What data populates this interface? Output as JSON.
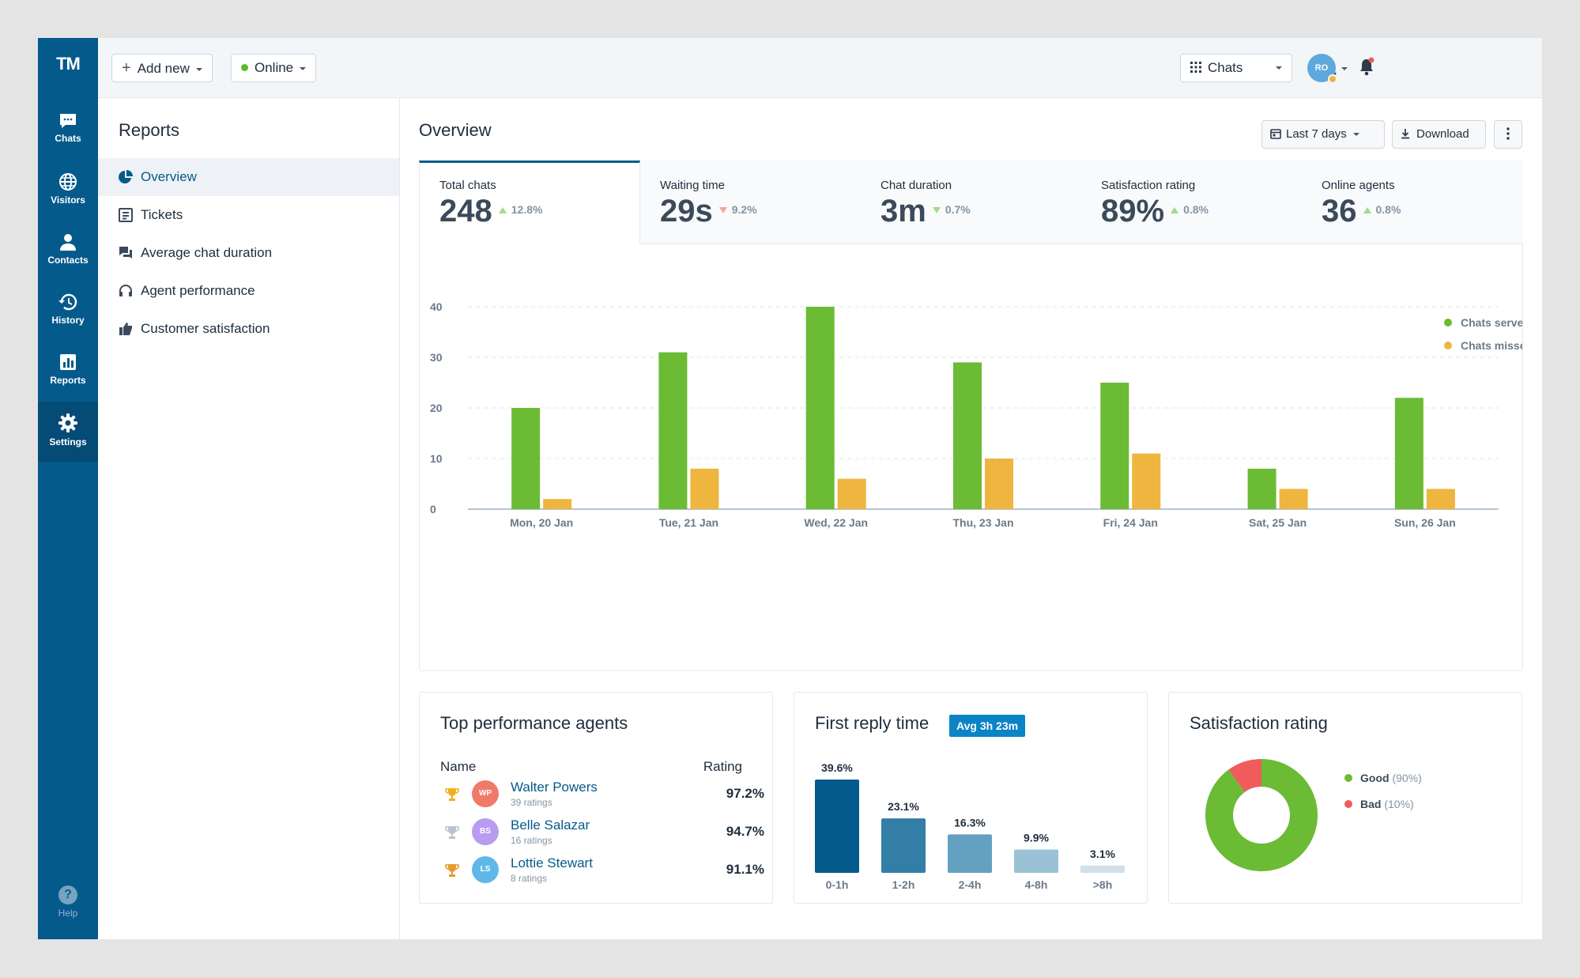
{
  "app": {
    "logo": "TM"
  },
  "nav": {
    "items": [
      {
        "label": "Chats",
        "icon": "chat-bubble-icon"
      },
      {
        "label": "Visitors",
        "icon": "globe-icon"
      },
      {
        "label": "Contacts",
        "icon": "person-icon"
      },
      {
        "label": "History",
        "icon": "history-icon"
      },
      {
        "label": "Reports",
        "icon": "bar-chart-icon"
      },
      {
        "label": "Settings",
        "icon": "gear-icon",
        "active": true
      }
    ],
    "help": "Help"
  },
  "topbar": {
    "add_new": "Add new",
    "status": "Online",
    "app_switcher": "Chats",
    "user_initials": "RO"
  },
  "sidebar": {
    "title": "Reports",
    "items": [
      {
        "label": "Overview",
        "active": true
      },
      {
        "label": "Tickets"
      },
      {
        "label": "Average chat duration"
      },
      {
        "label": "Agent performance"
      },
      {
        "label": "Customer satisfaction"
      }
    ]
  },
  "main": {
    "title": "Overview",
    "range": "Last 7 days",
    "download": "Download"
  },
  "kpis": [
    {
      "label": "Total chats",
      "value": "248",
      "change": "12.8%",
      "trend": "up"
    },
    {
      "label": "Waiting time",
      "value": "29s",
      "change": "9.2%",
      "trend": "down-bad"
    },
    {
      "label": "Chat duration",
      "value": "3m",
      "change": "0.7%",
      "trend": "down-good"
    },
    {
      "label": "Satisfaction rating",
      "value": "89%",
      "change": "0.8%",
      "trend": "up"
    },
    {
      "label": "Online agents",
      "value": "36",
      "change": "0.8%",
      "trend": "up"
    }
  ],
  "chart_data": {
    "type": "bar",
    "categories": [
      "Mon, 20 Jan",
      "Tue, 21 Jan",
      "Wed, 22 Jan",
      "Thu, 23 Jan",
      "Fri, 24 Jan",
      "Sat, 25 Jan",
      "Sun, 26 Jan"
    ],
    "series": [
      {
        "name": "Chats served",
        "color": "#6bbb35",
        "values": [
          20,
          31,
          40,
          29,
          25,
          8,
          22
        ]
      },
      {
        "name": "Chats missed",
        "color": "#eeb53f",
        "values": [
          2,
          8,
          6,
          10,
          11,
          4,
          4
        ]
      }
    ],
    "yticks": [
      0,
      10,
      20,
      30,
      40
    ],
    "ylim": [
      0,
      40
    ],
    "grid": true,
    "legend": "top-right"
  },
  "agents": {
    "title": "Top performance agents",
    "col_name": "Name",
    "col_rating": "Rating",
    "rows": [
      {
        "initials": "WP",
        "name": "Walter Powers",
        "ratings": "39 ratings",
        "rating": "97.2%",
        "avatar_color": "#f07a6a",
        "trophy_color": "#f2b01e"
      },
      {
        "initials": "BS",
        "name": "Belle Salazar",
        "ratings": "16 ratings",
        "rating": "94.7%",
        "avatar_color": "#b89cf0",
        "trophy_color": "#b9c4cf"
      },
      {
        "initials": "LS",
        "name": "Lottie Stewart",
        "ratings": "8 ratings",
        "rating": "91.1%",
        "avatar_color": "#5fb8e8",
        "trophy_color": "#e89a2c"
      }
    ]
  },
  "reply_time": {
    "title": "First reply time",
    "badge": "Avg 3h 23m",
    "chart_data": {
      "type": "bar",
      "categories": [
        "0-1h",
        "1-2h",
        "2-4h",
        "4-8h",
        ">8h"
      ],
      "values": [
        39.6,
        23.1,
        16.3,
        9.9,
        3.1
      ],
      "labels": [
        "39.6%",
        "23.1%",
        "16.3%",
        "9.9%",
        "3.1%"
      ],
      "colors": [
        "#055a8c",
        "#327ea6",
        "#64a0c0",
        "#9bc1d6",
        "#cfe0ea"
      ]
    }
  },
  "satisfaction": {
    "title": "Satisfaction rating",
    "chart_data": {
      "type": "pie",
      "categories": [
        "Good",
        "Bad"
      ],
      "values": [
        90,
        10
      ],
      "labels": [
        "(90%)",
        "(10%)"
      ],
      "colors": [
        "#6bbb35",
        "#f05b5b"
      ]
    }
  }
}
